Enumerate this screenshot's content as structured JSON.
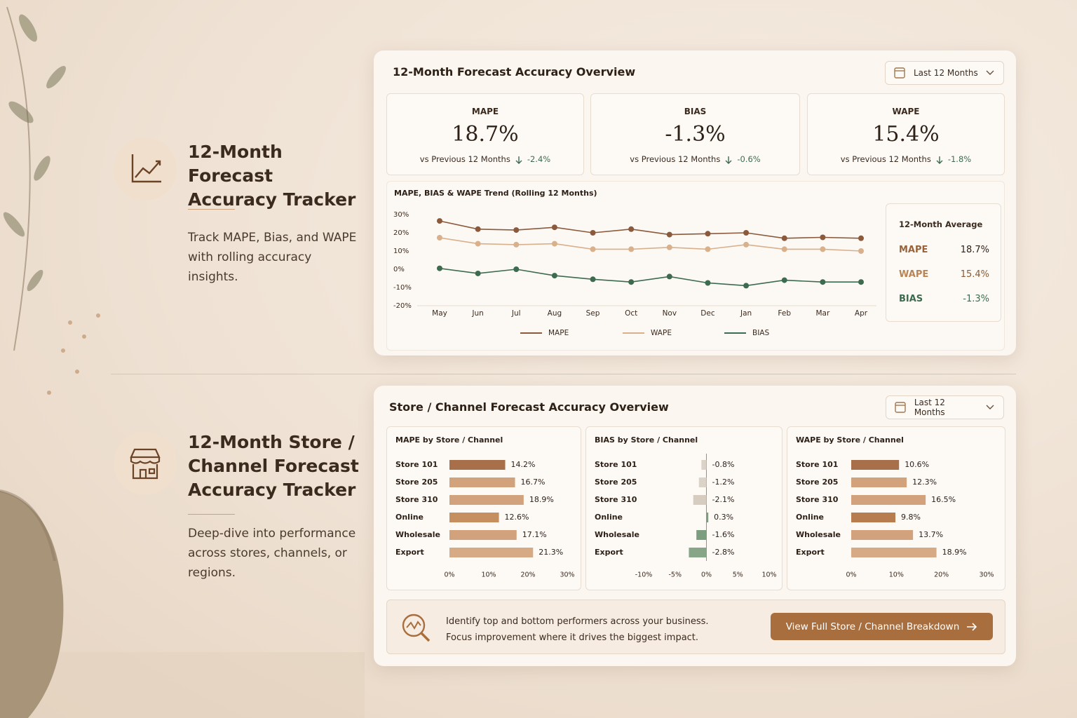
{
  "sections": [
    {
      "title": "12-Month Forecast Accuracy Tracker",
      "description": "Track MAPE, Bias, and WAPE with rolling accuracy insights."
    },
    {
      "title": "12-Month Store / Channel Forecast Accuracy Tracker",
      "description": "Deep-dive into performance across stores, channels, or regions."
    }
  ],
  "overview_panel": {
    "title": "12-Month Forecast Accuracy Overview",
    "filter": "Last 12 Months",
    "kpis": [
      {
        "label": "MAPE",
        "value": "18.7%",
        "compare": "vs Previous 12 Months",
        "delta": "-2.4%"
      },
      {
        "label": "BIAS",
        "value": "-1.3%",
        "compare": "vs Previous 12 Months",
        "delta": "-0.6%"
      },
      {
        "label": "WAPE",
        "value": "15.4%",
        "compare": "vs Previous 12 Months",
        "delta": "-1.8%"
      }
    ],
    "average": {
      "title": "12-Month Average",
      "rows": [
        {
          "label": "MAPE",
          "value": "18.7%"
        },
        {
          "label": "WAPE",
          "value": "15.4%"
        },
        {
          "label": "BIAS",
          "value": "-1.3%"
        }
      ]
    }
  },
  "store_panel": {
    "title": "Store / Channel Forecast Accuracy Overview",
    "filter": "Last 12 Months",
    "callout": {
      "lines": [
        "Identify top and bottom performers across your business.",
        "Focus improvement where it drives the biggest impact."
      ],
      "button": "View Full Store / Channel Breakdown"
    }
  },
  "chart_data": [
    {
      "type": "line",
      "title": "MAPE, BIAS & WAPE Trend (Rolling 12 Months)",
      "categories": [
        "May",
        "Jun",
        "Jul",
        "Aug",
        "Sep",
        "Oct",
        "Nov",
        "Dec",
        "Jan",
        "Feb",
        "Mar",
        "Apr"
      ],
      "series": [
        {
          "name": "MAPE",
          "color": "#8b5a3c",
          "values": [
            26.5,
            22,
            21.5,
            23,
            20,
            22,
            19,
            19.5,
            20,
            17,
            17.5,
            17
          ]
        },
        {
          "name": "WAPE",
          "color": "#d9b08c",
          "values": [
            17.3,
            14,
            13.5,
            14,
            11,
            11,
            12,
            11,
            13.5,
            11,
            11,
            10
          ]
        },
        {
          "name": "BIAS",
          "color": "#3d6b4f",
          "values": [
            0.5,
            -2.3,
            0,
            -3.5,
            -5.5,
            -7,
            -4,
            -7.5,
            -9,
            -6,
            -7,
            -7
          ]
        }
      ],
      "ylim": [
        -20,
        30
      ],
      "yticks": [
        {
          "value": 30,
          "label": "30%"
        },
        {
          "value": 20,
          "label": "20%"
        },
        {
          "value": 10,
          "label": "10%"
        },
        {
          "value": 0,
          "label": "0%"
        },
        {
          "value": -10,
          "label": "-10%"
        },
        {
          "value": -20,
          "label": "-20%"
        }
      ],
      "grid": false,
      "legend": "bottom"
    },
    {
      "type": "bar",
      "orientation": "horizontal",
      "title": "MAPE by Store / Channel",
      "categories": [
        "Store 101",
        "Store 205",
        "Store 310",
        "Online",
        "Wholesale",
        "Export"
      ],
      "values": [
        14.2,
        16.7,
        18.9,
        12.6,
        17.1,
        21.3
      ],
      "value_labels": [
        "14.2%",
        "16.7%",
        "18.9%",
        "12.6%",
        "17.1%",
        "21.3%"
      ],
      "colors": [
        "#a8704a",
        "#d2a27c",
        "#d2a27c",
        "#c58f60",
        "#d2a27c",
        "#d6aa85"
      ],
      "xlim": [
        0,
        30
      ],
      "xticks": [
        {
          "value": 0,
          "label": "0%"
        },
        {
          "value": 10,
          "label": "10%"
        },
        {
          "value": 20,
          "label": "20%"
        },
        {
          "value": 30,
          "label": "30%"
        }
      ]
    },
    {
      "type": "bar",
      "orientation": "horizontal",
      "title": "BIAS by Store / Channel",
      "categories": [
        "Store 101",
        "Store 205",
        "Store 310",
        "Online",
        "Wholesale",
        "Export"
      ],
      "values": [
        -0.8,
        -1.2,
        -2.1,
        0.3,
        -1.6,
        -2.8
      ],
      "value_labels": [
        "-0.8%",
        "-1.2%",
        "-2.1%",
        "0.3%",
        "-1.6%",
        "-2.8%"
      ],
      "colors": [
        "#dcd3c8",
        "#dcd3c8",
        "#d6ccc0",
        "#7c9e7e",
        "#7c9e7e",
        "#86a687"
      ],
      "xlim": [
        -10,
        10
      ],
      "xticks": [
        {
          "value": -10,
          "label": "-10%"
        },
        {
          "value": -5,
          "label": "-5%"
        },
        {
          "value": 0,
          "label": "0%"
        },
        {
          "value": 5,
          "label": "5%"
        },
        {
          "value": 10,
          "label": "10%"
        }
      ]
    },
    {
      "type": "bar",
      "orientation": "horizontal",
      "title": "WAPE by Store / Channel",
      "categories": [
        "Store 101",
        "Store 205",
        "Store 310",
        "Online",
        "Wholesale",
        "Export"
      ],
      "values": [
        10.6,
        12.3,
        16.5,
        9.8,
        13.7,
        18.9
      ],
      "value_labels": [
        "10.6%",
        "12.3%",
        "16.5%",
        "9.8%",
        "13.7%",
        "18.9%"
      ],
      "colors": [
        "#a8704a",
        "#d2a27c",
        "#d2a27c",
        "#b77d4e",
        "#d2a27c",
        "#d6aa85"
      ],
      "xlim": [
        0,
        30
      ],
      "xticks": [
        {
          "value": 0,
          "label": "0%"
        },
        {
          "value": 10,
          "label": "10%"
        },
        {
          "value": 20,
          "label": "20%"
        },
        {
          "value": 30,
          "label": "30%"
        }
      ]
    }
  ]
}
